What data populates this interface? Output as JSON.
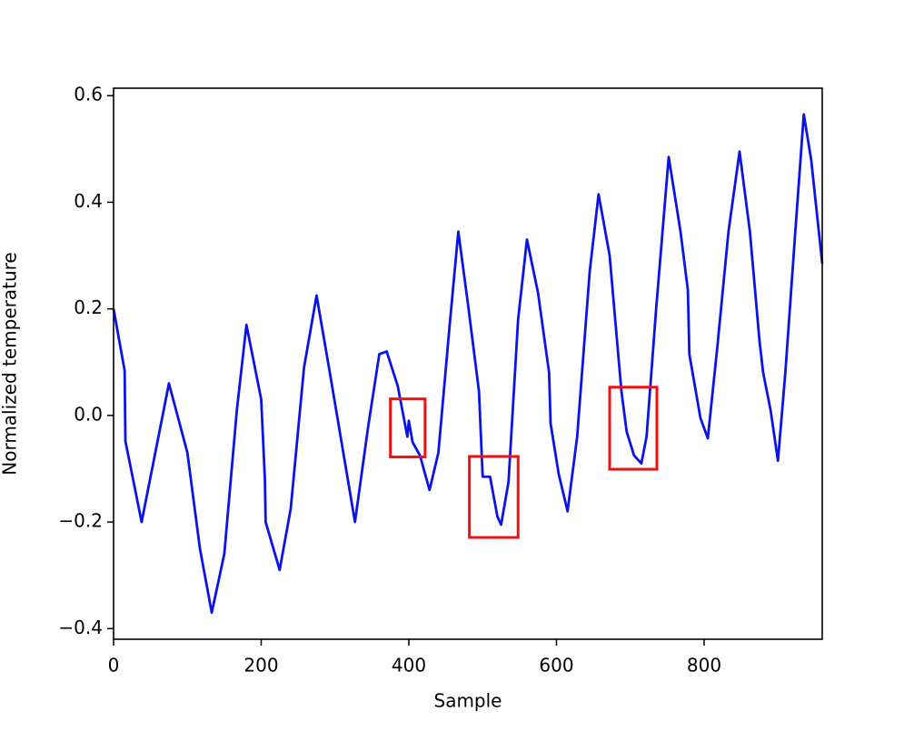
{
  "chart_data": {
    "type": "line",
    "xlabel": "Sample",
    "ylabel": "Normalized temperature",
    "xlim": [
      0,
      960
    ],
    "ylim": [
      -0.42,
      0.614
    ],
    "xticks": [
      0,
      200,
      400,
      600,
      800
    ],
    "yticks": [
      {
        "value": -0.4,
        "label": "−0.4"
      },
      {
        "value": -0.2,
        "label": "−0.2"
      },
      {
        "value": 0,
        "label": "0.0"
      },
      0.2,
      0.4,
      0.6
    ],
    "x": [
      0,
      15,
      16,
      38,
      75,
      100,
      117,
      133,
      150,
      167,
      180,
      200,
      205,
      206,
      225,
      240,
      258,
      275,
      293,
      310,
      327,
      345,
      360,
      370,
      385,
      398,
      400,
      405,
      415,
      428,
      440,
      455,
      467,
      480,
      495,
      500,
      510,
      520,
      525,
      535,
      548,
      560,
      575,
      590,
      592,
      603,
      615,
      628,
      645,
      657,
      672,
      688,
      695,
      705,
      715,
      722,
      735,
      752,
      768,
      778,
      780,
      795,
      805,
      818,
      833,
      848,
      862,
      875,
      880,
      890,
      900,
      910,
      923,
      935,
      945,
      960
    ],
    "series": [
      {
        "color": "#0a14e6",
        "values": [
          0.2,
          0.084,
          -0.048,
          -0.2,
          0.06,
          -0.07,
          -0.25,
          -0.37,
          -0.26,
          0.01,
          0.17,
          0.03,
          -0.12,
          -0.2,
          -0.29,
          -0.175,
          0.09,
          0.225,
          0.08,
          -0.06,
          -0.2,
          -0.02,
          0.115,
          0.12,
          0.055,
          -0.04,
          -0.01,
          -0.05,
          -0.075,
          -0.14,
          -0.07,
          0.165,
          0.345,
          0.21,
          0.045,
          -0.115,
          -0.115,
          -0.19,
          -0.205,
          -0.125,
          0.18,
          0.33,
          0.23,
          0.08,
          -0.015,
          -0.11,
          -0.18,
          -0.04,
          0.27,
          0.415,
          0.3,
          0.045,
          -0.03,
          -0.075,
          -0.09,
          -0.04,
          0.2,
          0.485,
          0.345,
          0.235,
          0.115,
          -0.005,
          -0.043,
          0.13,
          0.345,
          0.495,
          0.345,
          0.14,
          0.08,
          0.01,
          -0.085,
          0.08,
          0.335,
          0.565,
          0.48,
          0.285
        ]
      }
    ],
    "highlight_color": "#ee1111",
    "highlights": [
      {
        "x": [
          375,
          422
        ],
        "y": [
          -0.078,
          0.031
        ]
      },
      {
        "x": [
          482,
          548
        ],
        "y": [
          -0.229,
          -0.077
        ]
      },
      {
        "x": [
          672,
          736
        ],
        "y": [
          -0.101,
          0.053
        ]
      }
    ]
  }
}
